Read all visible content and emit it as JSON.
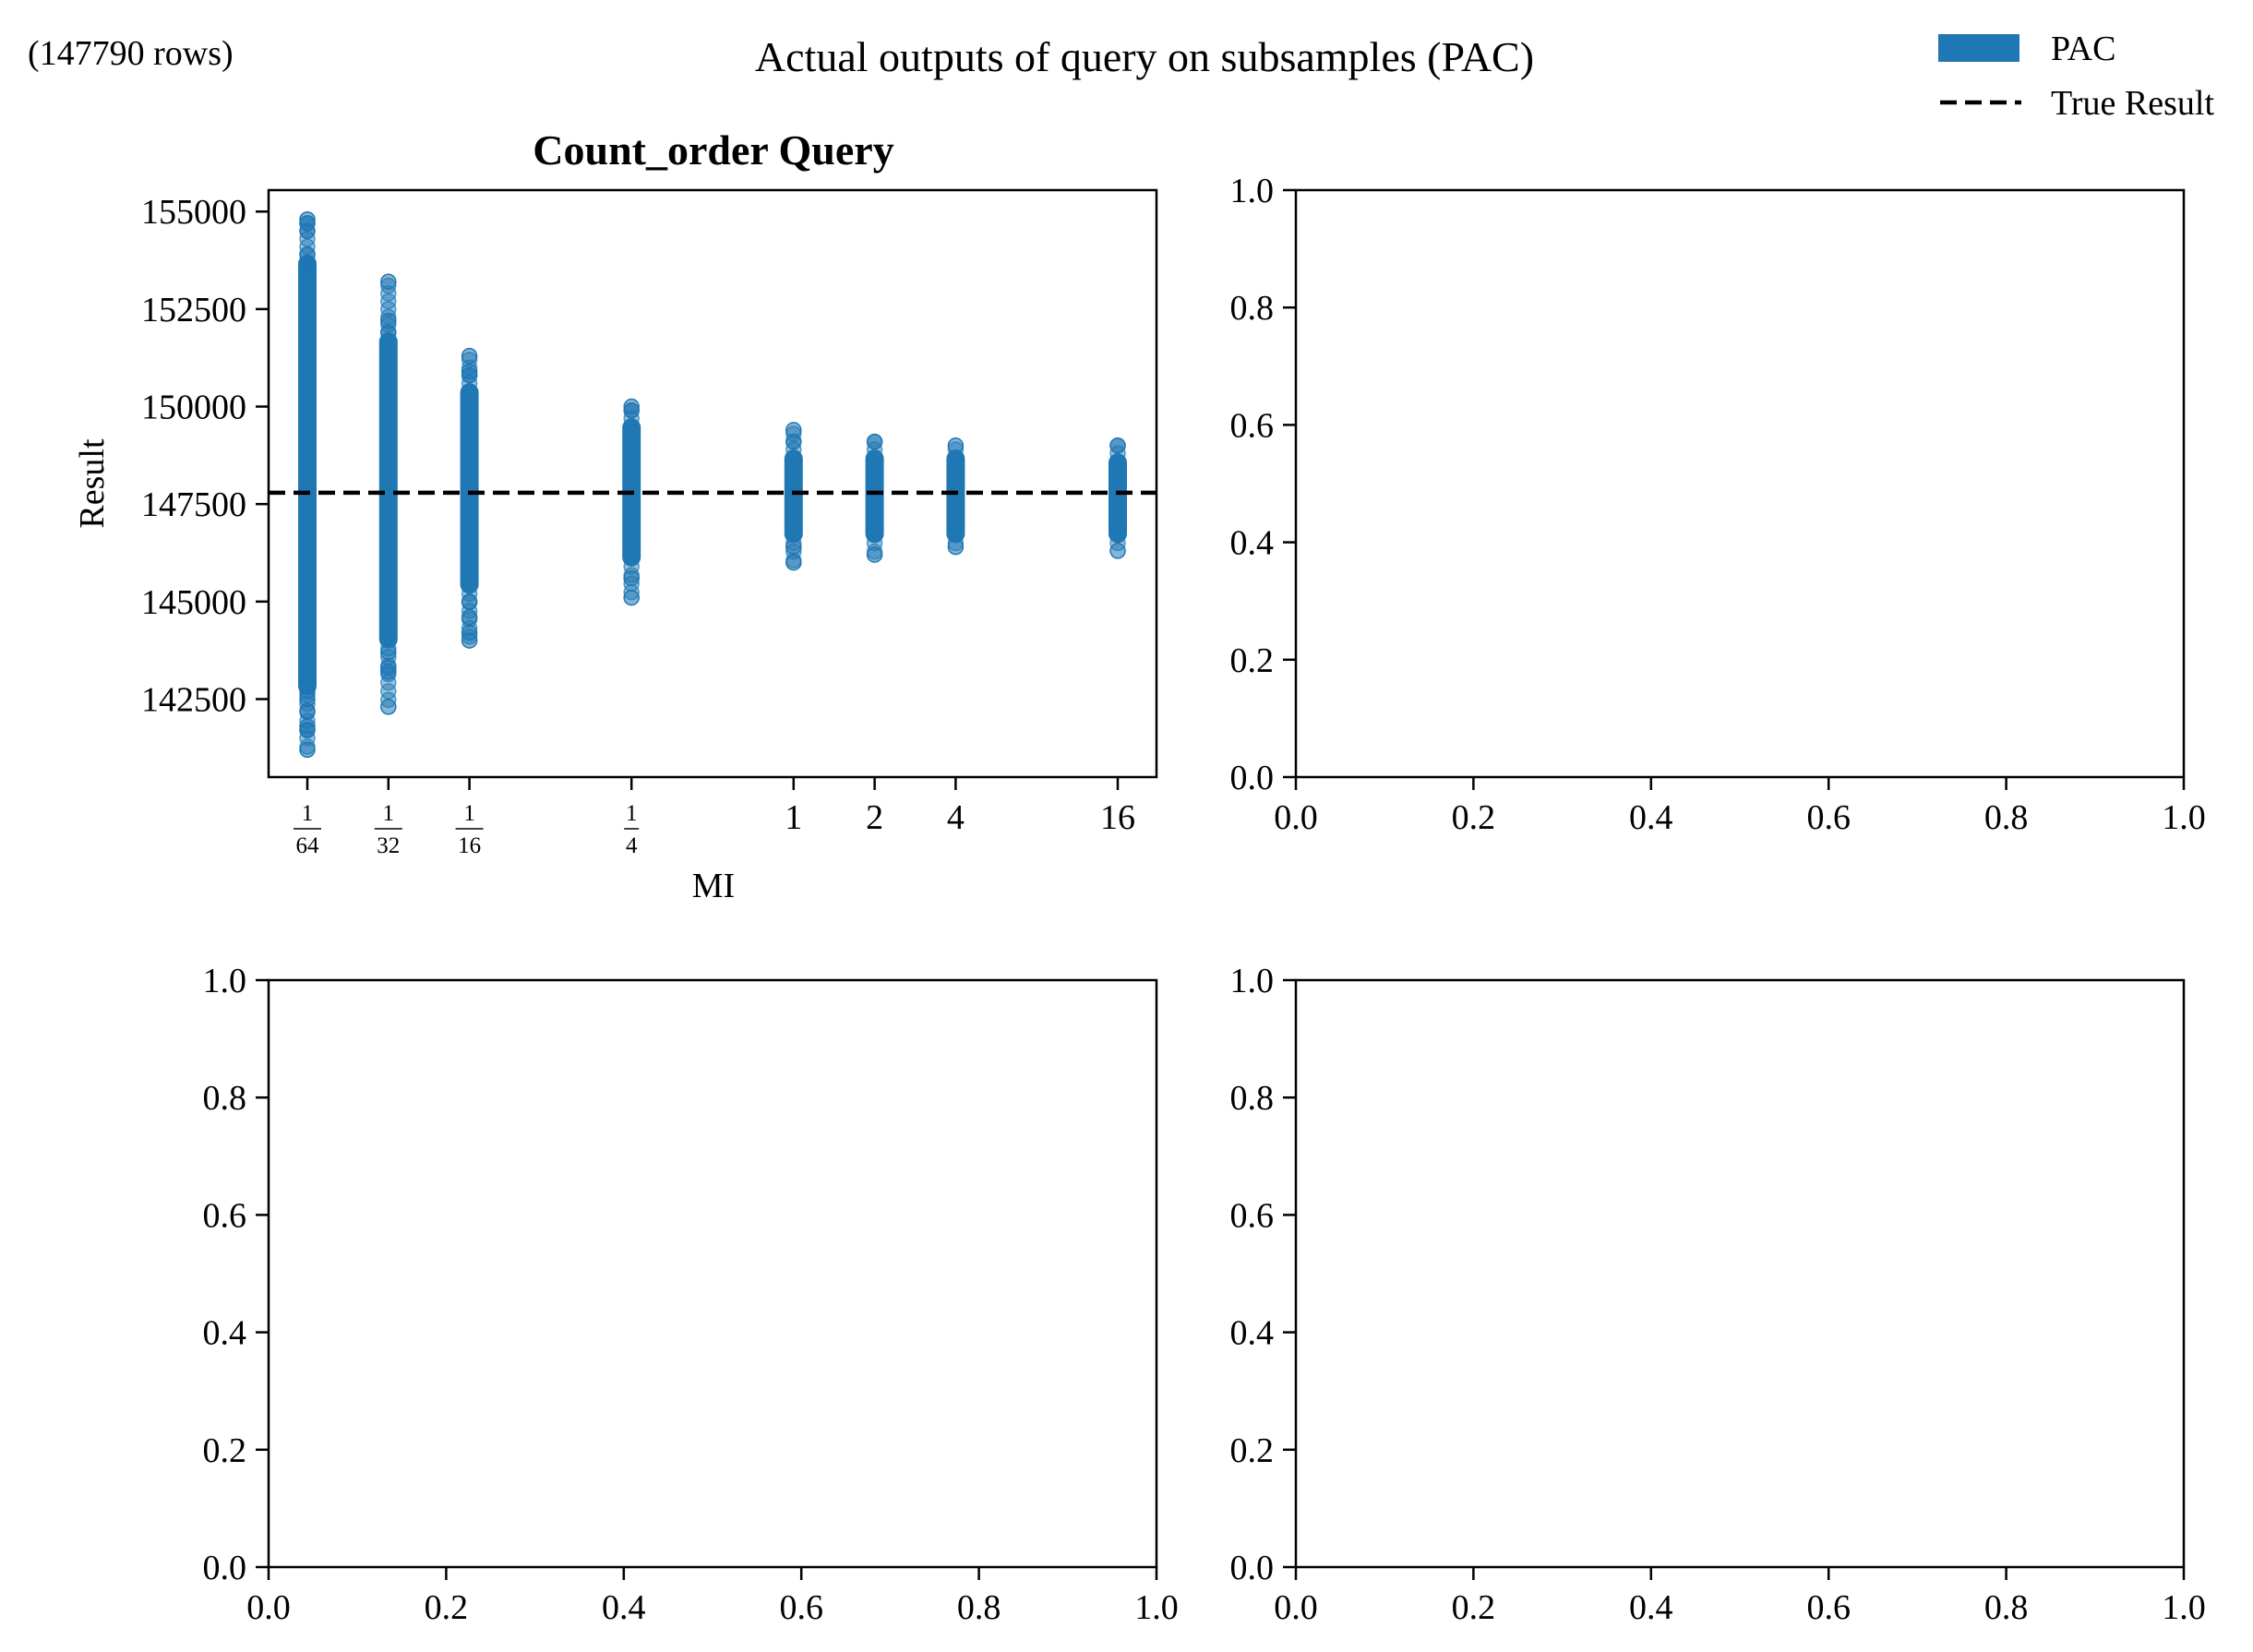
{
  "figure": {
    "title": "Actual outputs of query on subsamples (PAC)",
    "row_note": "(147790 rows)",
    "legend": {
      "placement": "top-right",
      "entries": [
        {
          "label": "PAC",
          "kind": "patch",
          "color": "#1f77b4"
        },
        {
          "label": "True Result",
          "kind": "dashed-line",
          "color": "#000000"
        }
      ]
    }
  },
  "chart_data": [
    {
      "type": "scatter",
      "title": "Count_order Query",
      "xlabel": "MI",
      "ylabel": "Result",
      "xscale": "log2",
      "x_ticks": [
        {
          "value": 0.015625,
          "label": "1/64"
        },
        {
          "value": 0.03125,
          "label": "1/32"
        },
        {
          "value": 0.0625,
          "label": "1/16"
        },
        {
          "value": 0.25,
          "label": "1/4"
        },
        {
          "value": 1,
          "label": "1"
        },
        {
          "value": 2,
          "label": "2"
        },
        {
          "value": 4,
          "label": "4"
        },
        {
          "value": 16,
          "label": "16"
        }
      ],
      "y_ticks": [
        142500,
        145000,
        147500,
        150000,
        152500,
        155000
      ],
      "y_tick_labels": [
        "142500",
        "145000",
        "147500",
        "150000",
        "152500",
        "155000"
      ],
      "ylim": [
        140500,
        155550
      ],
      "true_result": 147790,
      "point_color": "#1f77b4",
      "series": [
        {
          "x": 0.015625,
          "min": 141200,
          "max": 154800,
          "band": [
            142600,
            153900
          ],
          "outliers": [
            141200,
            141700,
            141800,
            142200,
            142500,
            142700,
            153600,
            153900,
            154500,
            154700,
            154800
          ]
        },
        {
          "x": 0.03125,
          "min": 142300,
          "max": 153200,
          "band": [
            143800,
            151900
          ],
          "outliers": [
            142300,
            143200,
            143300,
            143700,
            151900,
            152200,
            153200
          ]
        },
        {
          "x": 0.0625,
          "min": 144000,
          "max": 151300,
          "band": [
            145200,
            150600
          ],
          "outliers": [
            144000,
            144200,
            144600,
            145000,
            150800,
            150900,
            151300
          ]
        },
        {
          "x": 0.25,
          "min": 145100,
          "max": 150000,
          "band": [
            145900,
            149700
          ],
          "outliers": [
            145100,
            145600,
            149900,
            150000
          ]
        },
        {
          "x": 1,
          "min": 146000,
          "max": 149400,
          "band": [
            146500,
            148900
          ],
          "outliers": [
            146000,
            146400,
            149100,
            149400
          ]
        },
        {
          "x": 2,
          "min": 146200,
          "max": 149100,
          "band": [
            146500,
            148900
          ],
          "outliers": [
            146200,
            149100
          ]
        },
        {
          "x": 4,
          "min": 146400,
          "max": 149000,
          "band": [
            146500,
            148900
          ],
          "outliers": [
            146400,
            149000
          ]
        },
        {
          "x": 16,
          "min": 146300,
          "max": 149000,
          "band": [
            146500,
            148800
          ],
          "outliers": [
            146300,
            149000
          ]
        }
      ]
    },
    {
      "type": "scatter",
      "title": "",
      "empty": true,
      "x_ticks": [
        "0.0",
        "0.2",
        "0.4",
        "0.6",
        "0.8",
        "1.0"
      ],
      "y_ticks": [
        "0.0",
        "0.2",
        "0.4",
        "0.6",
        "0.8",
        "1.0"
      ],
      "xlim": [
        0,
        1
      ],
      "ylim": [
        0,
        1
      ]
    },
    {
      "type": "scatter",
      "title": "",
      "empty": true,
      "x_ticks": [
        "0.0",
        "0.2",
        "0.4",
        "0.6",
        "0.8",
        "1.0"
      ],
      "y_ticks": [
        "0.0",
        "0.2",
        "0.4",
        "0.6",
        "0.8",
        "1.0"
      ],
      "xlim": [
        0,
        1
      ],
      "ylim": [
        0,
        1
      ]
    },
    {
      "type": "scatter",
      "title": "",
      "empty": true,
      "x_ticks": [
        "0.0",
        "0.2",
        "0.4",
        "0.6",
        "0.8",
        "1.0"
      ],
      "y_ticks": [
        "0.0",
        "0.2",
        "0.4",
        "0.6",
        "0.8",
        "1.0"
      ],
      "xlim": [
        0,
        1
      ],
      "ylim": [
        0,
        1
      ]
    }
  ]
}
